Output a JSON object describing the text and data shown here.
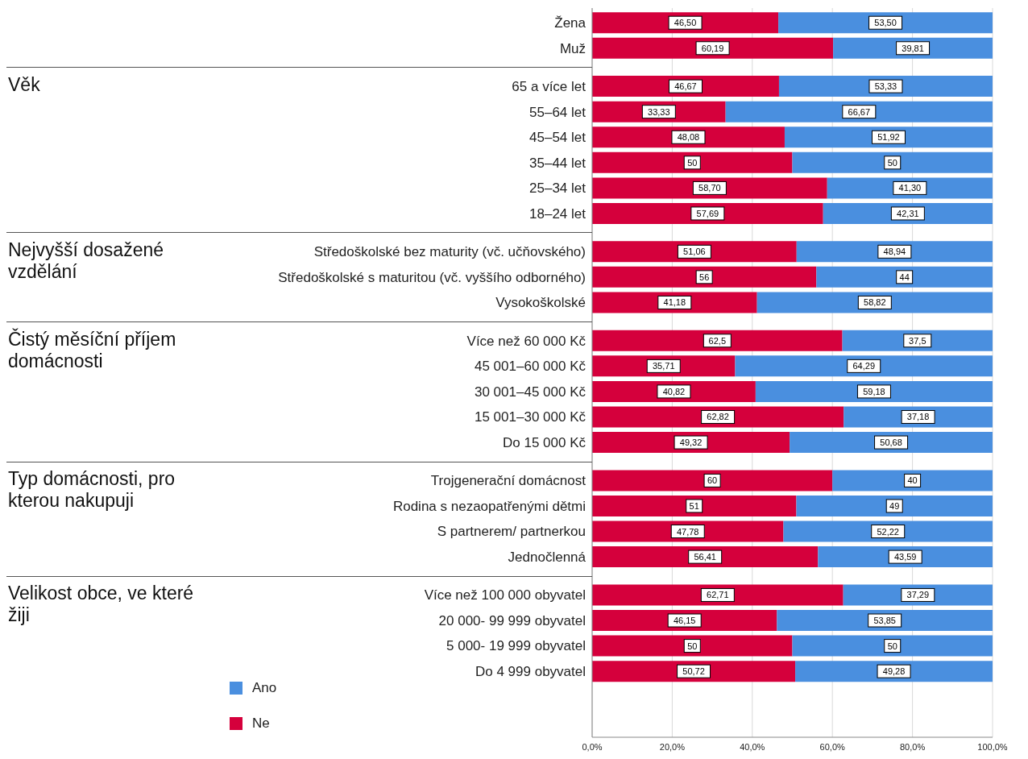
{
  "chart_data": {
    "type": "bar",
    "orientation": "horizontal",
    "stacked": true,
    "categories": [
      "Žena",
      "Muž",
      "65 a více let",
      "55–64 let",
      "45–54 let",
      "35–44 let",
      "25–34 let",
      "18–24 let",
      "Středoškolské bez maturity (vč. učňovského)",
      "Středoškolské s maturitou (vč. vyššího odborného)",
      "Vysokoškolské",
      "Více než 60 000 Kč",
      "45 001–60 000 Kč",
      "30 001–45 000 Kč",
      "15 001–30 000 Kč",
      "Do 15 000 Kč",
      "Trojgenerační domácnost",
      "Rodina s nezaopatřenými dětmi",
      "S partnerem/ partnerkou",
      "Jednočlenná",
      "Více než 100 000 obyvatel",
      "20 000- 99 999 obyvatel",
      "5 000- 19 999 obyvatel",
      "Do 4 999 obyvatel"
    ],
    "series": [
      {
        "name": "Ne",
        "color": "#d5003c",
        "values": [
          46.5,
          60.19,
          46.67,
          33.33,
          48.08,
          50,
          58.7,
          57.69,
          51.06,
          56,
          41.18,
          62.5,
          35.71,
          40.82,
          62.82,
          49.32,
          60,
          51,
          47.78,
          56.41,
          62.71,
          46.15,
          50,
          50.72
        ],
        "value_labels": [
          "46,50",
          "60,19",
          "46,67",
          "33,33",
          "48,08",
          "50",
          "58,70",
          "57,69",
          "51,06",
          "56",
          "41,18",
          "62,5",
          "35,71",
          "40,82",
          "62,82",
          "49,32",
          "60",
          "51",
          "47,78",
          "56,41",
          "62,71",
          "46,15",
          "50",
          "50,72"
        ]
      },
      {
        "name": "Ano",
        "color": "#4a8fdf",
        "values": [
          53.5,
          39.81,
          53.33,
          66.67,
          51.92,
          50,
          41.3,
          42.31,
          48.94,
          44,
          58.82,
          37.5,
          64.29,
          59.18,
          37.18,
          50.68,
          40,
          49,
          52.22,
          43.59,
          37.29,
          53.85,
          50,
          49.28
        ],
        "value_labels": [
          "53,50",
          "39,81",
          "53,33",
          "66,67",
          "51,92",
          "50",
          "41,30",
          "42,31",
          "48,94",
          "44",
          "58,82",
          "37,5",
          "64,29",
          "59,18",
          "37,18",
          "50,68",
          "40",
          "49",
          "52,22",
          "43,59",
          "37,29",
          "53,85",
          "50",
          "49,28"
        ]
      }
    ],
    "xlim": [
      0,
      100
    ],
    "xticks": [
      {
        "value": 0,
        "label": "0,0%"
      },
      {
        "value": 20,
        "label": "20,0%"
      },
      {
        "value": 40,
        "label": "40,0%"
      },
      {
        "value": 60,
        "label": "60,0%"
      },
      {
        "value": 80,
        "label": "80,0%"
      },
      {
        "value": 100,
        "label": "100,0%"
      }
    ],
    "grid": "x",
    "legend": "bottom left",
    "annotations": [
      "Věk",
      "Nejvyšší dosažené vzdělání",
      "Čistý měsíční příjem domácnosti",
      "Typ domácnosti, pro kterou nakupuji",
      "Velikost obce, ve které žiji"
    ]
  }
}
